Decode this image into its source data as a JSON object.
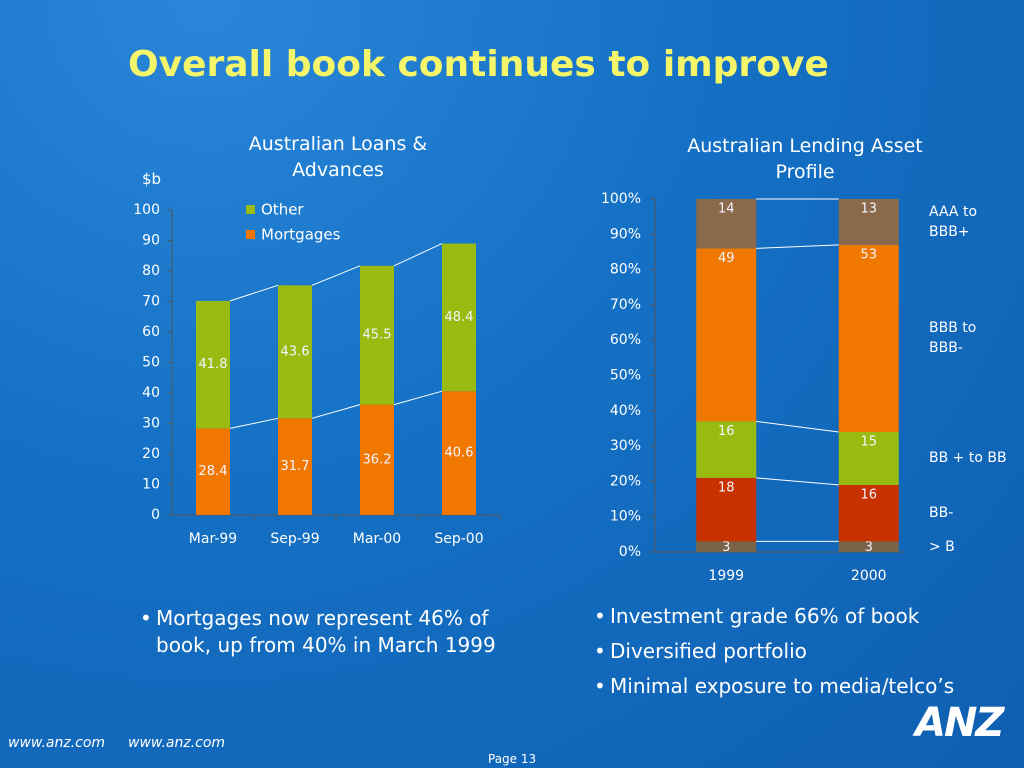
{
  "title": "Overall book continues to improve",
  "chart_data": [
    {
      "type": "stacked_bar",
      "title": "Australian Loans & Advances",
      "ylabel": "$b",
      "categories": [
        "Mar-99",
        "Sep-99",
        "Mar-00",
        "Sep-00"
      ],
      "series": [
        {
          "name": "Mortgages",
          "color": "#f07800",
          "values": [
            28.4,
            31.7,
            36.2,
            40.6
          ]
        },
        {
          "name": "Other",
          "color": "#99bb11",
          "values": [
            41.8,
            43.6,
            45.5,
            48.4
          ]
        }
      ],
      "ylim": [
        0,
        100
      ],
      "yticks": [
        0,
        10,
        20,
        30,
        40,
        50,
        60,
        70,
        80,
        90,
        100
      ],
      "legend": "inside"
    },
    {
      "type": "stacked_bar",
      "title": "Australian Lending Asset  Profile",
      "categories": [
        "1999",
        "2000"
      ],
      "series": [
        {
          "name": "> B",
          "color": "#7a6448",
          "values": [
            3,
            3
          ]
        },
        {
          "name": "BB-",
          "color": "#c83200",
          "values": [
            18,
            16
          ]
        },
        {
          "name": "BB + to BB",
          "color": "#99bb11",
          "values": [
            16,
            15
          ]
        },
        {
          "name": "BBB to BBB-",
          "color": "#f07800",
          "values": [
            49,
            53
          ]
        },
        {
          "name": "AAA to BBB+",
          "color": "#8a6a4a",
          "values": [
            14,
            13
          ]
        }
      ],
      "ylim": [
        0,
        100
      ],
      "yticks": [
        {
          "value": 0,
          "label": "0%"
        },
        {
          "value": 10,
          "label": "10%"
        },
        {
          "value": 20,
          "label": "20%"
        },
        {
          "value": 30,
          "label": "30%"
        },
        {
          "value": 40,
          "label": "40%"
        },
        {
          "value": 50,
          "label": "50%"
        },
        {
          "value": 60,
          "label": "60%"
        },
        {
          "value": 70,
          "label": "70%"
        },
        {
          "value": 80,
          "label": "80%"
        },
        {
          "value": 90,
          "label": "90%"
        },
        {
          "value": 100,
          "label": "100%"
        }
      ],
      "legend": "beside"
    }
  ],
  "bullets_left": [
    "Mortgages now represent 46% of book, up from 40% in March 1999"
  ],
  "bullets_right": [
    "Investment grade 66% of book",
    "Diversified portfolio",
    "Minimal exposure to media/telco’s"
  ],
  "footer": {
    "url_1": "www.anz.com",
    "url_2": "www.anz.com",
    "page": "Page 13",
    "logo": "ANZ"
  }
}
